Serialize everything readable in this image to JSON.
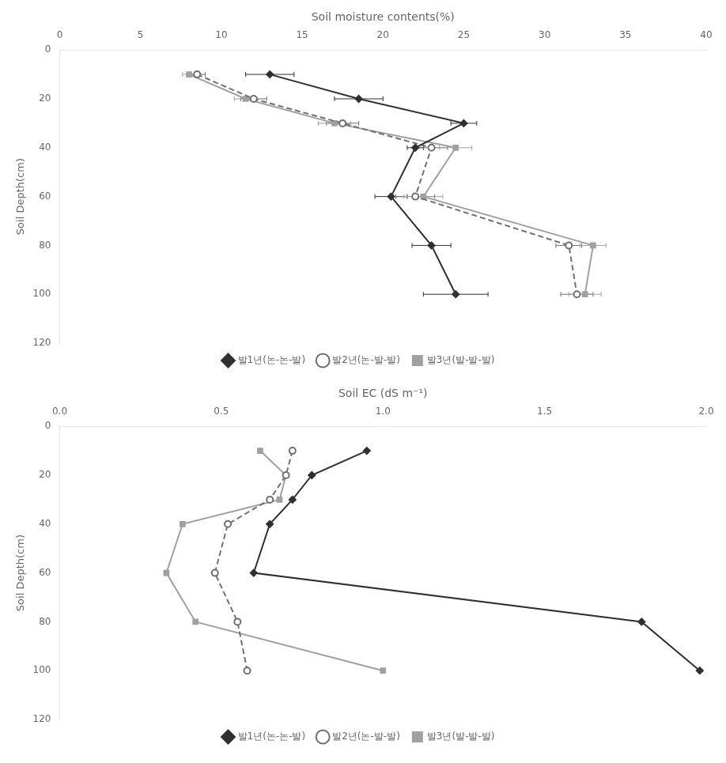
{
  "chart_data": [
    {
      "type": "line",
      "x_label": "Soil moisture contents(%)",
      "y_label": "Soil Depth(cm)",
      "xlim": [
        0,
        40
      ],
      "ylim": [
        120,
        0
      ],
      "xticks": [
        0,
        5,
        10,
        15,
        20,
        25,
        30,
        35,
        40
      ],
      "yticks": [
        0,
        20,
        40,
        60,
        80,
        100,
        120
      ],
      "grid": false,
      "legend": "bottom",
      "series": [
        {
          "name": "발1년(논-논-발)",
          "color": "#303030",
          "line_style": "solid",
          "marker": "diamond",
          "x": [
            13.0,
            18.5,
            25.0,
            22.0,
            20.5,
            23.0,
            24.5
          ],
          "y": [
            10,
            20,
            30,
            40,
            60,
            80,
            100
          ],
          "xerr": [
            1.5,
            1.5,
            0.8,
            0.5,
            1.0,
            1.2,
            2.0
          ]
        },
        {
          "name": "발2년(논-발-발)",
          "color": "#707070",
          "line_style": "dashed",
          "marker": "open_circle",
          "x": [
            8.5,
            12.0,
            17.5,
            23.0,
            22.0,
            31.5,
            32.0
          ],
          "y": [
            10,
            20,
            30,
            40,
            60,
            80,
            100
          ],
          "xerr": [
            0.5,
            0.8,
            1.0,
            1.0,
            1.2,
            0.8,
            1.0
          ]
        },
        {
          "name": "발3년(발-발-발)",
          "color": "#a0a0a0",
          "line_style": "solid",
          "marker": "square",
          "x": [
            8.0,
            11.5,
            17.0,
            24.5,
            22.5,
            33.0,
            32.5
          ],
          "y": [
            10,
            20,
            30,
            40,
            60,
            80,
            100
          ],
          "xerr": [
            0.4,
            0.7,
            1.0,
            1.0,
            1.2,
            0.8,
            1.0
          ]
        }
      ]
    },
    {
      "type": "line",
      "x_label": "Soil EC (dS m⁻¹)",
      "y_label": "Soil Depth(cm)",
      "xlim": [
        0,
        2
      ],
      "ylim": [
        120,
        0
      ],
      "xticks": [
        {
          "value": 0,
          "label": "0.0"
        },
        {
          "value": 0.5,
          "label": "0.5"
        },
        {
          "value": 1,
          "label": "1.0"
        },
        {
          "value": 1.5,
          "label": "1.5"
        },
        {
          "value": 2,
          "label": "2.0"
        }
      ],
      "yticks": [
        0,
        20,
        40,
        60,
        80,
        100,
        120
      ],
      "grid": false,
      "legend": "bottom",
      "series": [
        {
          "name": "발1년(논-논-발)",
          "color": "#303030",
          "line_style": "solid",
          "marker": "diamond",
          "x": [
            0.95,
            0.78,
            0.72,
            0.65,
            0.6,
            1.8,
            1.98
          ],
          "y": [
            10,
            20,
            30,
            40,
            60,
            80,
            100
          ]
        },
        {
          "name": "발2년(논-발-발)",
          "color": "#707070",
          "line_style": "dashed",
          "marker": "open_circle",
          "x": [
            0.72,
            0.7,
            0.65,
            0.52,
            0.48,
            0.55,
            0.58
          ],
          "y": [
            10,
            20,
            30,
            40,
            60,
            80,
            100
          ]
        },
        {
          "name": "발3년(발-발-발)",
          "color": "#a0a0a0",
          "line_style": "solid",
          "marker": "square",
          "x": [
            0.62,
            0.7,
            0.68,
            0.38,
            0.33,
            0.42,
            1.0
          ],
          "y": [
            10,
            20,
            30,
            40,
            60,
            80,
            100
          ]
        }
      ]
    }
  ]
}
